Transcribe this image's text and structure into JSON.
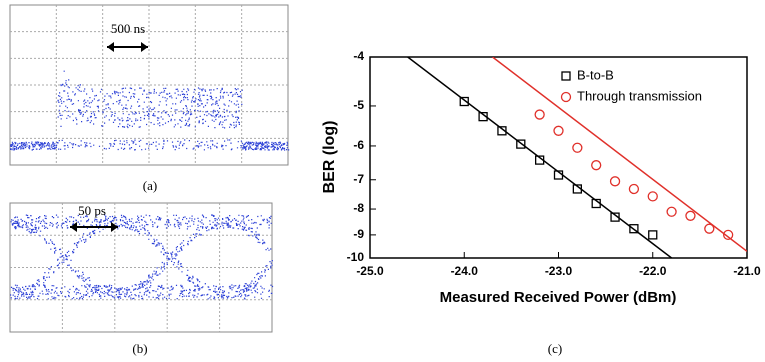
{
  "panels": {
    "a": {
      "label": "(a)",
      "scale_label": "500 ns"
    },
    "b": {
      "label": "(b)",
      "scale_label": "50 ps"
    },
    "c": {
      "label": "(c)"
    }
  },
  "chart_data": {
    "type": "scatter",
    "x_label": "Measured Received Power (dBm)",
    "y_label": "BER (log)",
    "xlim": [
      -25,
      -21
    ],
    "xticks": [
      {
        "value": -25,
        "label": "-25.0"
      },
      {
        "value": -24,
        "label": "-24.0"
      },
      {
        "value": -23,
        "label": "-23.0"
      },
      {
        "value": -22,
        "label": "-22.0"
      },
      {
        "value": -21,
        "label": "-21.0"
      }
    ],
    "ylim": [
      -10,
      -4
    ],
    "yticks": [
      -4,
      -5,
      -6,
      -7,
      -8,
      -9,
      -10
    ],
    "yscale": "log-log",
    "legend": "top-right",
    "series": [
      {
        "name": "B-to-B",
        "color": "#000000",
        "marker": "square",
        "x": [
          -24.0,
          -23.8,
          -23.6,
          -23.4,
          -23.2,
          -23.0,
          -22.8,
          -22.6,
          -22.4,
          -22.2,
          -22.0
        ],
        "values": [
          -4.9,
          -5.25,
          -5.6,
          -5.95,
          -6.4,
          -6.85,
          -7.3,
          -7.8,
          -8.3,
          -8.75,
          -9.0
        ],
        "fit": {
          "x": [
            -24.6,
            -21.8
          ],
          "values": [
            -4,
            -10
          ]
        }
      },
      {
        "name": "Through transmission",
        "color": "#e0302a",
        "marker": "circle",
        "x": [
          -23.2,
          -23.0,
          -22.8,
          -22.6,
          -22.4,
          -22.2,
          -22.0,
          -21.8,
          -21.6,
          -21.4,
          -21.2
        ],
        "values": [
          -5.2,
          -5.6,
          -6.05,
          -6.55,
          -7.05,
          -7.3,
          -7.55,
          -8.1,
          -8.25,
          -8.75,
          -9.0
        ],
        "fit": {
          "x": [
            -23.7,
            -21.0
          ],
          "values": [
            -4,
            -9.7
          ]
        }
      }
    ]
  }
}
